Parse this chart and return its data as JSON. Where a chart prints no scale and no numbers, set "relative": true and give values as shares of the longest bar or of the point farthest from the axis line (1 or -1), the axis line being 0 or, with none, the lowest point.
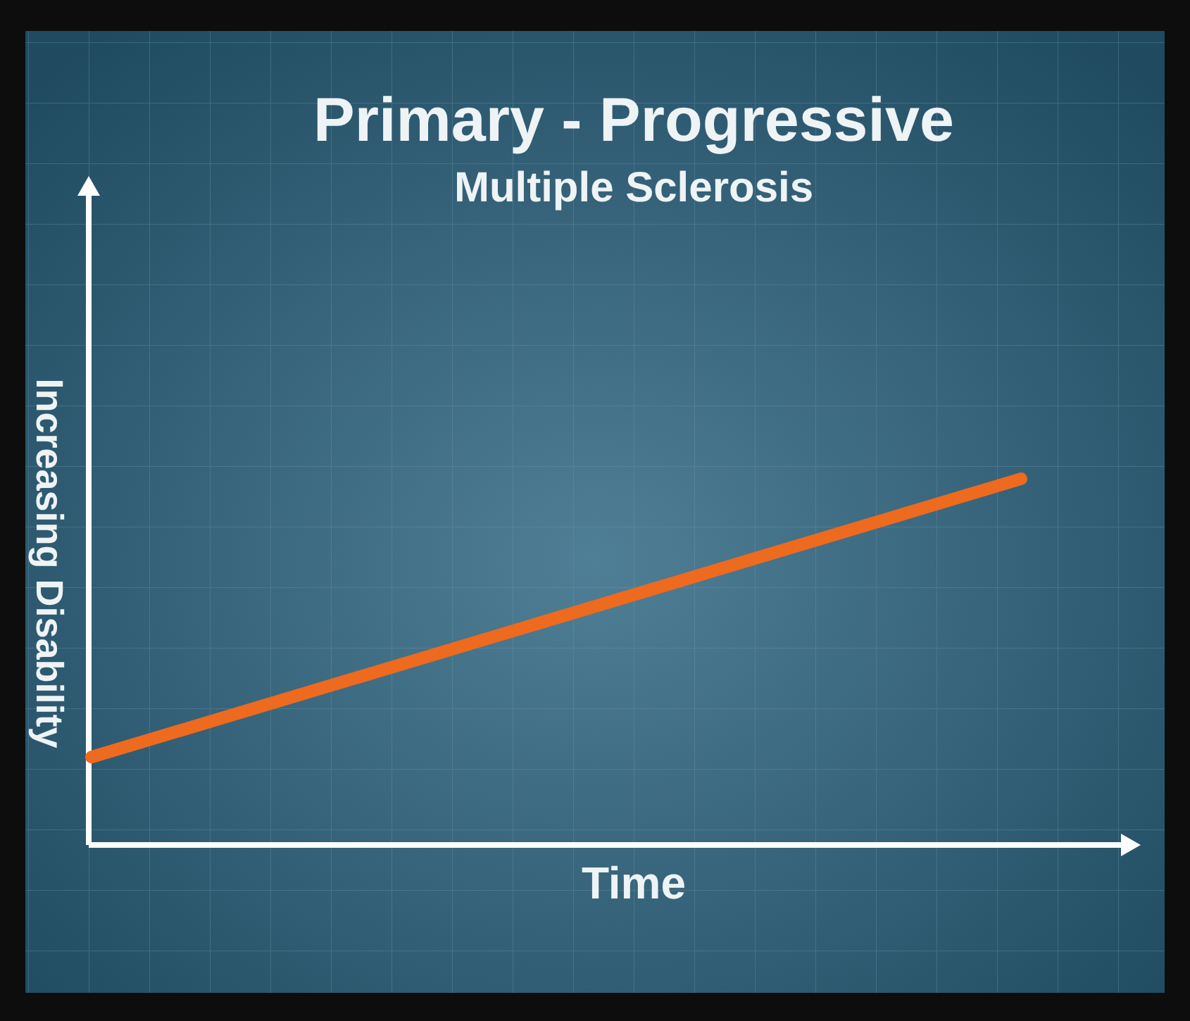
{
  "chart_data": {
    "type": "line",
    "title": "Primary - Progressive",
    "subtitle": "Multiple Sclerosis",
    "xlabel": "Time",
    "ylabel": "Increasing Disability",
    "relative": true,
    "categories": [
      null,
      null
    ],
    "series": [
      {
        "color": "#ee6a1e",
        "values": [
          0.24,
          1
        ]
      }
    ]
  }
}
